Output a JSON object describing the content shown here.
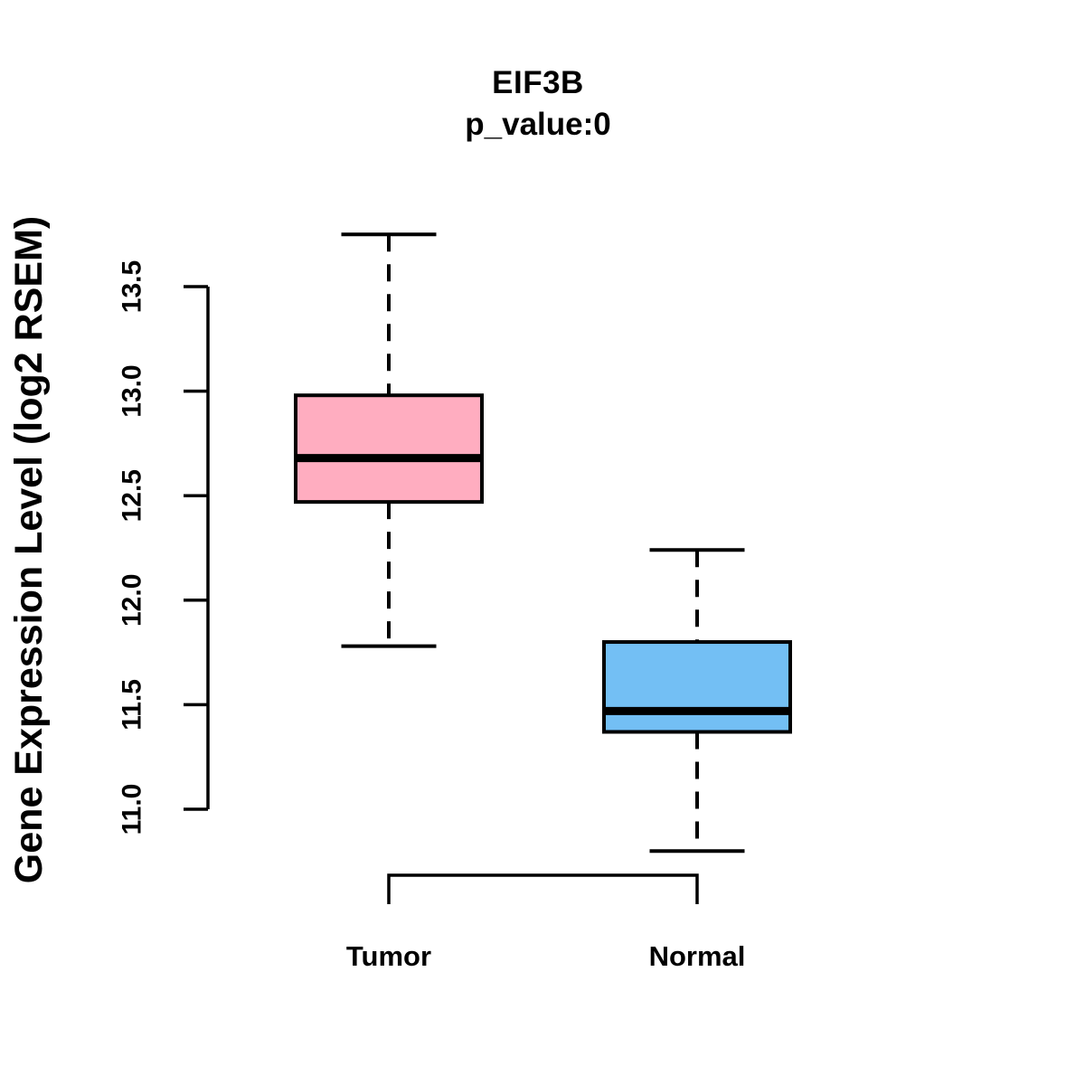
{
  "chart_data": {
    "type": "boxplot",
    "title": "EIF3B",
    "subtitle": "p_value:0",
    "ylabel": "Gene Expression Level (log2 RSEM)",
    "ylim": [
      10.6,
      13.9
    ],
    "yticks": [
      {
        "value": 11.0,
        "label": "11.0"
      },
      {
        "value": 11.5,
        "label": "11.5"
      },
      {
        "value": 12.0,
        "label": "12.0"
      },
      {
        "value": 12.5,
        "label": "12.5"
      },
      {
        "value": 13.0,
        "label": "13.0"
      },
      {
        "value": 13.5,
        "label": "13.5"
      }
    ],
    "grid": false,
    "legend": "none",
    "groups": [
      {
        "label": "Tumor",
        "fill_color": "#FFADC0",
        "stroke_color": "#000000",
        "whisker_low": 11.78,
        "q1": 12.47,
        "median": 12.68,
        "q3": 12.98,
        "whisker_high": 13.75
      },
      {
        "label": "Normal",
        "fill_color": "#73BFF4",
        "stroke_color": "#000000",
        "whisker_low": 10.8,
        "q1": 11.37,
        "median": 11.47,
        "q3": 11.8,
        "whisker_high": 12.24
      }
    ],
    "annotations": {
      "comparison_bracket": {
        "from_group": "Tumor",
        "to_group": "Normal"
      }
    }
  }
}
